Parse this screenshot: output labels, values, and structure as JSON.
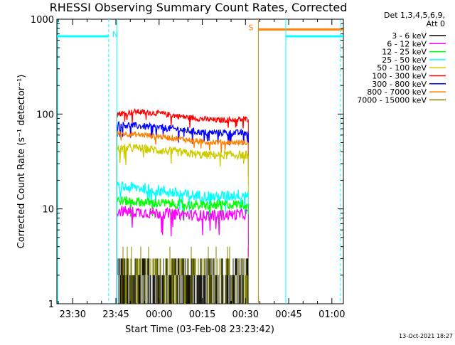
{
  "chart_data": {
    "type": "line",
    "title": "RHESSI Observing Summary Count Rates, Corrected",
    "xlabel": "Start Time (03-Feb-08 23:23:42)",
    "ylabel": "Corrected Count Rate (s⁻¹ detector⁻¹)",
    "y_scale": "log",
    "ylim": [
      1,
      1000
    ],
    "xlim_minutes_after_2330": [
      -5.5,
      94
    ],
    "x_ticks": [
      {
        "label": "23:30",
        "t": 0
      },
      {
        "label": "23:45",
        "t": 15
      },
      {
        "label": "00:00",
        "t": 30
      },
      {
        "label": "00:15",
        "t": 45
      },
      {
        "label": "00:30",
        "t": 60
      },
      {
        "label": "00:45",
        "t": 75
      },
      {
        "label": "01:00",
        "t": 90
      }
    ],
    "y_ticks": [
      {
        "label": "1",
        "v": 1
      },
      {
        "label": "10",
        "v": 10
      },
      {
        "label": "100",
        "v": 100
      },
      {
        "label": "1000",
        "v": 1000
      }
    ],
    "legend": {
      "header_line1": "Det 1,3,4,5,6,9,",
      "header_line2": "Att 0",
      "placement": "top-right",
      "entries": [
        {
          "label": "3 - 6 keV",
          "color": "#000000"
        },
        {
          "label": "6 - 12 keV",
          "color": "#ff00ff"
        },
        {
          "label": "12 - 25 keV",
          "color": "#00ff00"
        },
        {
          "label": "25 - 50 keV",
          "color": "#00ffff"
        },
        {
          "label": "50 - 100 keV",
          "color": "#cccc00"
        },
        {
          "label": "100 - 300 keV",
          "color": "#ff0000"
        },
        {
          "label": "300 - 800 keV",
          "color": "#0000ff"
        },
        {
          "label": "800 - 7000 keV",
          "color": "#ff8000"
        },
        {
          "label": "7000 - 15000 keV",
          "color": "#808000"
        }
      ]
    },
    "time_window": {
      "start": 15.3,
      "end": 61.0
    },
    "series": [
      {
        "label": "100 - 300 keV",
        "color": "#ff0000",
        "start": 15.3,
        "end": 61.0,
        "knots": [
          [
            15.3,
            100
          ],
          [
            22,
            106
          ],
          [
            30,
            102
          ],
          [
            40,
            92
          ],
          [
            50,
            86
          ],
          [
            61,
            88
          ]
        ],
        "noise": 0.03
      },
      {
        "label": "300 - 800 keV",
        "color": "#0000ff",
        "start": 15.3,
        "end": 61.0,
        "knots": [
          [
            15.3,
            78
          ],
          [
            25,
            74
          ],
          [
            35,
            70
          ],
          [
            45,
            64
          ],
          [
            61,
            63
          ]
        ],
        "noise": 0.035
      },
      {
        "label": "800 - 7000 keV",
        "color": "#ff8000",
        "start": 15.3,
        "end": 61.0,
        "knots": [
          [
            15.3,
            63
          ],
          [
            25,
            60
          ],
          [
            35,
            56
          ],
          [
            45,
            51
          ],
          [
            61,
            50
          ]
        ],
        "noise": 0.03
      },
      {
        "label": "50 - 100 keV",
        "color": "#cccc00",
        "start": 15.3,
        "end": 61.0,
        "knots": [
          [
            15.3,
            43
          ],
          [
            22,
            44
          ],
          [
            35,
            40
          ],
          [
            45,
            37
          ],
          [
            61,
            37
          ]
        ],
        "noise": 0.045
      },
      {
        "label": "25 - 50 keV",
        "color": "#00ffff",
        "start": 15.3,
        "end": 61.0,
        "knots": [
          [
            15.3,
            17
          ],
          [
            25,
            16.5
          ],
          [
            40,
            14
          ],
          [
            50,
            13.3
          ],
          [
            61,
            14.5
          ]
        ],
        "noise": 0.06
      },
      {
        "label": "12 - 25 keV",
        "color": "#00ff00",
        "start": 15.3,
        "end": 61.0,
        "knots": [
          [
            15.3,
            12.3
          ],
          [
            30,
            11.5
          ],
          [
            45,
            10.8
          ],
          [
            61,
            11.3
          ]
        ],
        "noise": 0.05
      },
      {
        "label": "6 - 12 keV",
        "color": "#ff00ff",
        "start": 15.3,
        "end": 61.0,
        "knots": [
          [
            15.3,
            9.5
          ],
          [
            30,
            9.0
          ],
          [
            45,
            8.5
          ],
          [
            61,
            8.8
          ]
        ],
        "noise": 0.06
      }
    ],
    "low_energy_counts": {
      "labels": [
        "3 - 6 keV",
        "7000 - 15000 keV"
      ],
      "levels": [
        1,
        2,
        3
      ],
      "start": 15.3,
      "end": 61.0
    },
    "flag_markers": [
      {
        "label": "N",
        "color": "#00ffff",
        "segments": [
          [
            -5.5,
            12.5
          ]
        ],
        "value": 660,
        "dashed_at": [
          12.5
        ]
      },
      {
        "label": "S",
        "color": "#ff8000",
        "segments": [
          [
            64.5,
            94
          ]
        ],
        "value": 780,
        "solid_at": [
          64.5
        ]
      },
      {
        "label": "",
        "color": "#00ffff",
        "segments": [
          [
            74,
            94
          ]
        ],
        "value": 660,
        "dashed_at": [
          74,
          93
        ]
      }
    ],
    "grid": false
  },
  "footer_date": "13-Oct-2021 18:27"
}
